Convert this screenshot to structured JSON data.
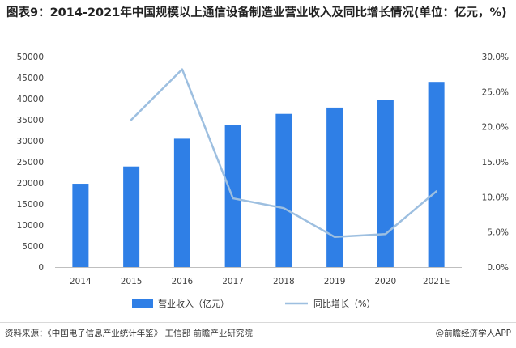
{
  "title": "图表9：2014-2021年中国规模以上通信设备制造业营业收入及同比增长情况(单位：亿元，%)",
  "source": "资料来源：《中国电子信息产业统计年鉴》 工信部 前瞻产业研究院",
  "credit": "@前瞻经济学人APP",
  "chart_data": {
    "type": "bar+line",
    "title": "图表9：2014-2021年中国规模以上通信设备制造业营业收入及同比增长情况(单位：亿元，%)",
    "categories": [
      "2014",
      "2015",
      "2016",
      "2017",
      "2018",
      "2019",
      "2020",
      "2021E"
    ],
    "series": [
      {
        "name": "营业收入（亿元）",
        "type": "bar",
        "axis": "left",
        "color": "#2f7fe6",
        "values": [
          19800,
          23900,
          30500,
          33700,
          36400,
          37900,
          39700,
          44000
        ]
      },
      {
        "name": "同比增长（%）",
        "type": "line",
        "axis": "right",
        "color": "#9dbfe0",
        "values": [
          null,
          21.0,
          28.2,
          9.8,
          8.4,
          4.3,
          4.7,
          10.8
        ]
      }
    ],
    "y_left": {
      "ticks": [
        0,
        5000,
        10000,
        15000,
        20000,
        25000,
        30000,
        35000,
        40000,
        45000,
        50000
      ],
      "ylim": [
        0,
        50000
      ]
    },
    "y_right": {
      "ticks": [
        "0.0%",
        "5.0%",
        "10.0%",
        "15.0%",
        "20.0%",
        "25.0%",
        "30.0%"
      ],
      "ylim": [
        0,
        30
      ]
    },
    "grid": false,
    "legend_position": "bottom-center"
  }
}
